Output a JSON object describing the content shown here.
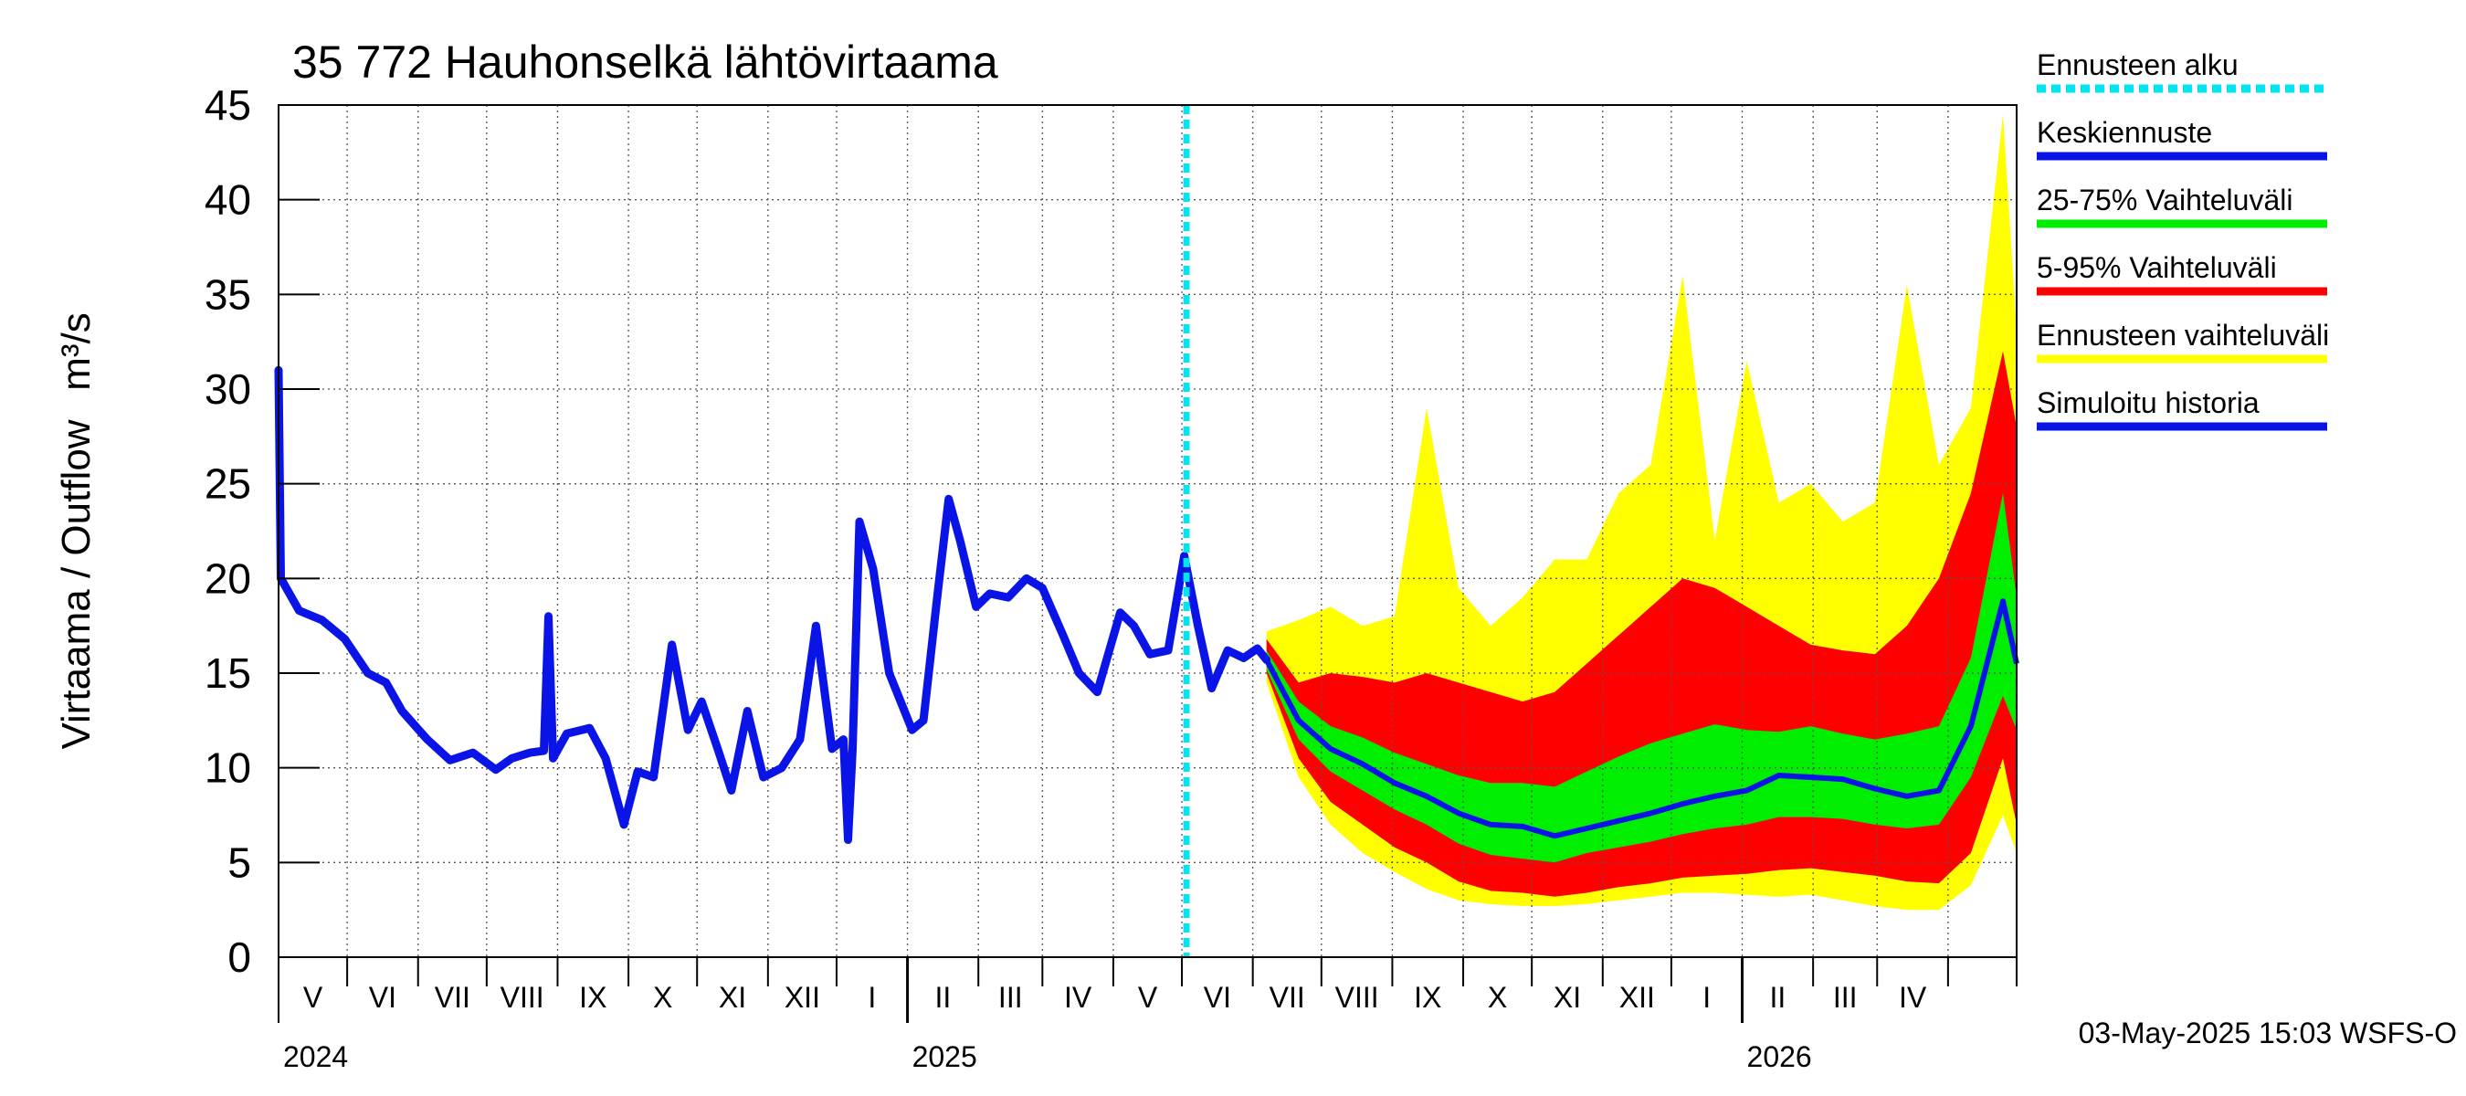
{
  "chart_data": {
    "type": "area",
    "title": "35 772 Hauhonselkä lähtövirtaama",
    "ylabel": "Virtaama / Outflow",
    "yunit": "m³/s",
    "ylim": [
      0,
      45
    ],
    "yticks": [
      0,
      5,
      10,
      15,
      20,
      25,
      30,
      35,
      40,
      45
    ],
    "xlim": [
      "2024-04-01",
      "2026-05-01"
    ],
    "month_labels": [
      "V",
      "VI",
      "VII",
      "VIII",
      "IX",
      "X",
      "XI",
      "XII",
      "I",
      "II",
      "III",
      "IV",
      "V",
      "VI",
      "VII",
      "VIII",
      "IX",
      "X",
      "XI",
      "XII",
      "I",
      "II",
      "III",
      "IV"
    ],
    "year_labels": [
      "2024",
      "2025",
      "2026"
    ],
    "forecast_start": "2025-05-03",
    "grid": true,
    "legend_position": "right",
    "footer": "03-May-2025 15:03 WSFS-O",
    "legend": [
      {
        "label": "Ennusteen alku",
        "color": "#00e5ee",
        "style": "dashed"
      },
      {
        "label": "Keskiennuste",
        "color": "#0a14e6",
        "style": "solid"
      },
      {
        "label": "25-75% Vaihteluväli",
        "color": "#00ee00",
        "style": "solid"
      },
      {
        "label": "5-95% Vaihteluväli",
        "color": "#ff0000",
        "style": "solid"
      },
      {
        "label": "Ennusteen vaihteluväli",
        "color": "#ffff00",
        "style": "solid"
      },
      {
        "label": "Simuloitu historia",
        "color": "#0a14e6",
        "style": "solid"
      }
    ],
    "history": {
      "name": "Simuloitu historia",
      "points": [
        [
          "2024-04-01",
          31
        ],
        [
          "2024-04-02",
          20
        ],
        [
          "2024-04-10",
          18.3
        ],
        [
          "2024-04-20",
          17.8
        ],
        [
          "2024-04-30",
          16.8
        ],
        [
          "2024-05-10",
          15
        ],
        [
          "2024-05-18",
          14.5
        ],
        [
          "2024-05-25",
          13
        ],
        [
          "2024-06-05",
          11.5
        ],
        [
          "2024-06-15",
          10.4
        ],
        [
          "2024-06-25",
          10.8
        ],
        [
          "2024-07-05",
          9.9
        ],
        [
          "2024-07-12",
          10.5
        ],
        [
          "2024-07-20",
          10.8
        ],
        [
          "2024-07-26",
          10.9
        ],
        [
          "2024-07-28",
          18
        ],
        [
          "2024-07-30",
          10.5
        ],
        [
          "2024-08-05",
          11.8
        ],
        [
          "2024-08-15",
          12.1
        ],
        [
          "2024-08-22",
          10.5
        ],
        [
          "2024-08-30",
          7
        ],
        [
          "2024-09-05",
          9.8
        ],
        [
          "2024-09-12",
          9.5
        ],
        [
          "2024-09-20",
          16.5
        ],
        [
          "2024-09-27",
          12
        ],
        [
          "2024-10-03",
          13.5
        ],
        [
          "2024-10-10",
          11
        ],
        [
          "2024-10-16",
          8.8
        ],
        [
          "2024-10-23",
          13
        ],
        [
          "2024-10-30",
          9.5
        ],
        [
          "2024-11-07",
          10
        ],
        [
          "2024-11-15",
          11.5
        ],
        [
          "2024-11-22",
          17.5
        ],
        [
          "2024-11-29",
          11
        ],
        [
          "2024-12-04",
          11.5
        ],
        [
          "2024-12-06",
          6.2
        ],
        [
          "2024-12-08",
          11
        ],
        [
          "2024-12-11",
          23
        ],
        [
          "2024-12-17",
          20.5
        ],
        [
          "2024-12-24",
          15
        ],
        [
          "2025-01-03",
          12
        ],
        [
          "2025-01-08",
          12.5
        ],
        [
          "2025-01-14",
          19
        ],
        [
          "2025-01-19",
          24.2
        ],
        [
          "2025-01-24",
          22
        ],
        [
          "2025-01-31",
          18.5
        ],
        [
          "2025-02-06",
          19.2
        ],
        [
          "2025-02-14",
          19
        ],
        [
          "2025-02-22",
          20
        ],
        [
          "2025-03-01",
          19.5
        ],
        [
          "2025-03-10",
          17
        ],
        [
          "2025-03-17",
          15
        ],
        [
          "2025-03-25",
          14
        ],
        [
          "2025-04-04",
          18.2
        ],
        [
          "2025-04-10",
          17.5
        ],
        [
          "2025-04-17",
          16
        ],
        [
          "2025-04-25",
          16.2
        ],
        [
          "2025-05-02",
          21.2
        ],
        [
          "2025-05-08",
          17.5
        ],
        [
          "2025-05-14",
          14.2
        ],
        [
          "2025-05-21",
          16.2
        ],
        [
          "2025-05-28",
          15.8
        ],
        [
          "2025-06-03",
          16.3
        ],
        [
          "2025-06-07",
          15.7
        ]
      ]
    },
    "forecast": {
      "x": [
        "2025-06-07",
        "2025-06-21",
        "2025-07-05",
        "2025-07-19",
        "2025-08-02",
        "2025-08-16",
        "2025-08-30",
        "2025-09-13",
        "2025-09-27",
        "2025-10-11",
        "2025-10-25",
        "2025-11-08",
        "2025-11-22",
        "2025-12-06",
        "2025-12-20",
        "2026-01-03",
        "2026-01-17",
        "2026-01-31",
        "2026-02-14",
        "2026-02-28",
        "2026-03-14",
        "2026-03-28",
        "2026-04-11",
        "2026-04-25",
        "2026-05-01"
      ],
      "median": [
        15.7,
        12.5,
        11.0,
        10.2,
        9.2,
        8.5,
        7.6,
        7.0,
        6.9,
        6.4,
        6.8,
        7.2,
        7.6,
        8.1,
        8.5,
        8.8,
        9.6,
        9.5,
        9.4,
        8.9,
        8.5,
        8.8,
        12.2,
        18.8,
        15.5
      ],
      "p25": [
        15.2,
        11.5,
        9.8,
        8.8,
        7.8,
        7.0,
        6.0,
        5.4,
        5.2,
        5.0,
        5.5,
        5.8,
        6.1,
        6.5,
        6.8,
        7.0,
        7.4,
        7.4,
        7.3,
        7.0,
        6.8,
        7.0,
        9.5,
        13.8,
        12.0
      ],
      "p75": [
        16.2,
        13.5,
        12.2,
        11.6,
        10.8,
        10.2,
        9.6,
        9.2,
        9.2,
        9.0,
        9.8,
        10.6,
        11.3,
        11.8,
        12.3,
        12.0,
        11.9,
        12.2,
        11.8,
        11.5,
        11.8,
        12.2,
        15.8,
        24.5,
        19.0
      ],
      "p05": [
        15.0,
        10.5,
        8.2,
        7.0,
        5.8,
        5.0,
        4.0,
        3.5,
        3.4,
        3.2,
        3.4,
        3.7,
        3.9,
        4.2,
        4.3,
        4.4,
        4.6,
        4.7,
        4.5,
        4.3,
        4.0,
        3.9,
        5.5,
        10.5,
        7.0
      ],
      "p95": [
        16.8,
        14.5,
        15.0,
        14.8,
        14.5,
        15.0,
        14.5,
        14.0,
        13.5,
        14.0,
        15.5,
        17.0,
        18.5,
        20.0,
        19.5,
        18.5,
        17.5,
        16.5,
        16.2,
        16.0,
        17.5,
        20.0,
        24.5,
        32.0,
        28.0
      ],
      "min": [
        14.5,
        9.5,
        7.0,
        5.5,
        4.5,
        3.6,
        3.0,
        2.8,
        2.7,
        2.7,
        2.8,
        3.0,
        3.2,
        3.4,
        3.4,
        3.3,
        3.2,
        3.3,
        3.0,
        2.7,
        2.5,
        2.5,
        3.8,
        7.5,
        5.5
      ],
      "max": [
        17.2,
        17.8,
        18.5,
        17.5,
        18.0,
        29.0,
        19.5,
        17.5,
        19.0,
        21.0,
        21.0,
        24.5,
        26.0,
        36.0,
        22.0,
        31.5,
        24.0,
        25.0,
        23.0,
        24.0,
        35.5,
        26.0,
        29.0,
        44.5,
        33.0
      ]
    }
  }
}
